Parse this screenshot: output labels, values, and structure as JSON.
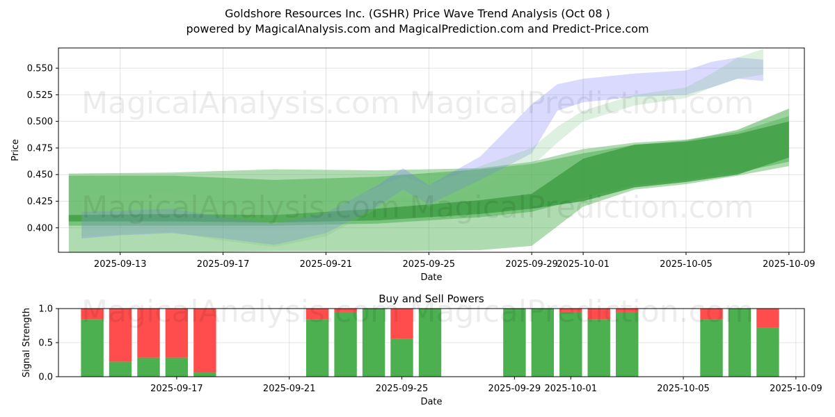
{
  "title_line1": "Goldshore Resources Inc. (GSHR) Price Wave Trend Analysis (Oct 08 )",
  "title_line2": "powered by MagicalAnalysis.com and MagicalPrediction.com and Predict-Price.com",
  "watermarks": [
    "MagicalAnalysis.com",
    "MagicalPrediction.com"
  ],
  "chart_data": [
    {
      "type": "area",
      "title": "Goldshore Resources Inc. (GSHR) Price Wave Trend Analysis (Oct 08 )",
      "xlabel": "Date",
      "ylabel": "Price",
      "ylim": [
        0.377,
        0.569
      ],
      "xlim_days_from_2025_09_11": [
        -0.4,
        28.6
      ],
      "x_ticks": [
        "2025-09-13",
        "2025-09-17",
        "2025-09-21",
        "2025-09-25",
        "2025-09-29",
        "2025-10-01",
        "2025-10-05",
        "2025-10-09"
      ],
      "x_tick_days": [
        2,
        6,
        10,
        14,
        18,
        20,
        24,
        28
      ],
      "y_ticks": [
        "0.400",
        "0.425",
        "0.450",
        "0.475",
        "0.500",
        "0.525",
        "0.550"
      ],
      "y_tick_values": [
        0.4,
        0.425,
        0.45,
        0.475,
        0.5,
        0.525,
        0.55
      ],
      "grid": true,
      "series": [
        {
          "name": "green-wide-band",
          "color": "#4caf50",
          "opacity": 0.45,
          "x": [
            0,
            4,
            8,
            12,
            16,
            18,
            20,
            22,
            24,
            26,
            28
          ],
          "upper": [
            0.451,
            0.452,
            0.455,
            0.454,
            0.456,
            0.462,
            0.474,
            0.48,
            0.483,
            0.49,
            0.505
          ],
          "lower": [
            0.376,
            0.377,
            0.378,
            0.378,
            0.379,
            0.383,
            0.42,
            0.436,
            0.441,
            0.449,
            0.458
          ]
        },
        {
          "name": "green-mid-band",
          "color": "#4caf50",
          "opacity": 0.55,
          "x": [
            0,
            4,
            8,
            12,
            16,
            18,
            20,
            22,
            24,
            26,
            28
          ],
          "upper": [
            0.449,
            0.449,
            0.445,
            0.448,
            0.455,
            0.46,
            0.47,
            0.478,
            0.482,
            0.492,
            0.512
          ],
          "lower": [
            0.402,
            0.402,
            0.402,
            0.404,
            0.41,
            0.415,
            0.428,
            0.44,
            0.445,
            0.452,
            0.462
          ]
        },
        {
          "name": "green-core-band",
          "color": "#3f9f45",
          "opacity": 0.85,
          "x": [
            0,
            4,
            8,
            12,
            16,
            18,
            20,
            22,
            24,
            26,
            28
          ],
          "upper": [
            0.412,
            0.413,
            0.412,
            0.418,
            0.426,
            0.432,
            0.465,
            0.478,
            0.481,
            0.488,
            0.5
          ],
          "lower": [
            0.406,
            0.406,
            0.405,
            0.407,
            0.413,
            0.418,
            0.425,
            0.438,
            0.443,
            0.45,
            0.466
          ]
        },
        {
          "name": "blue-wave-band",
          "color": "#6a6aff",
          "opacity": 0.25,
          "x": [
            0.5,
            2,
            4,
            6,
            8,
            10,
            12,
            13,
            14,
            16,
            18,
            19,
            20,
            22,
            24,
            25,
            26,
            27
          ],
          "upper": [
            0.415,
            0.416,
            0.418,
            0.41,
            0.404,
            0.414,
            0.44,
            0.456,
            0.44,
            0.467,
            0.516,
            0.535,
            0.54,
            0.545,
            0.548,
            0.556,
            0.56,
            0.558
          ],
          "lower": [
            0.39,
            0.393,
            0.395,
            0.39,
            0.384,
            0.395,
            0.42,
            0.436,
            0.422,
            0.445,
            0.47,
            0.51,
            0.518,
            0.523,
            0.525,
            0.532,
            0.54,
            0.538
          ]
        },
        {
          "name": "green-upper-wave-band",
          "color": "#7bc47f",
          "opacity": 0.25,
          "x": [
            0.5,
            2,
            4,
            6,
            8,
            10,
            12,
            13,
            14,
            16,
            18,
            19,
            20,
            22,
            24,
            25,
            26,
            27
          ],
          "upper": [
            0.43,
            0.432,
            0.433,
            0.422,
            0.415,
            0.42,
            0.438,
            0.448,
            0.44,
            0.458,
            0.475,
            0.495,
            0.51,
            0.525,
            0.532,
            0.545,
            0.56,
            0.568
          ],
          "lower": [
            0.392,
            0.394,
            0.396,
            0.388,
            0.382,
            0.392,
            0.418,
            0.43,
            0.42,
            0.44,
            0.458,
            0.48,
            0.5,
            0.515,
            0.522,
            0.532,
            0.54,
            0.544
          ]
        }
      ]
    },
    {
      "type": "bar",
      "title": "Buy and Sell Powers",
      "xlabel": "Date",
      "ylabel": "Signal Strength",
      "ylim": [
        0,
        1
      ],
      "xlim_days_from_2025_09_11": [
        1.8,
        28.3
      ],
      "x_ticks": [
        "2025-09-17",
        "2025-09-21",
        "2025-09-25",
        "2025-09-29",
        "2025-10-01",
        "2025-10-05",
        "2025-10-09"
      ],
      "x_tick_days": [
        6,
        10,
        14,
        18,
        20,
        24,
        28
      ],
      "y_ticks": [
        "0.0",
        "0.5",
        "1.0"
      ],
      "y_tick_values": [
        0,
        0.5,
        1.0
      ],
      "grid": true,
      "colors": {
        "buy": "#4caf50",
        "sell": "#ff4d4d"
      },
      "x_days": [
        3,
        4,
        5,
        6,
        7,
        11,
        12,
        13,
        14,
        15,
        18,
        19,
        20,
        21,
        22,
        25,
        26,
        27
      ],
      "series": [
        {
          "name": "Buy",
          "values": [
            0.84,
            0.22,
            0.28,
            0.28,
            0.06,
            0.84,
            0.95,
            1.0,
            0.56,
            1.0,
            1.0,
            1.0,
            0.95,
            0.84,
            0.95,
            0.84,
            1.0,
            0.72
          ]
        },
        {
          "name": "Sell",
          "values": [
            0.16,
            0.78,
            0.72,
            0.72,
            0.94,
            0.16,
            0.05,
            0.0,
            0.44,
            0.0,
            0.0,
            0.0,
            0.05,
            0.16,
            0.05,
            0.16,
            0.0,
            0.28
          ]
        }
      ]
    }
  ]
}
